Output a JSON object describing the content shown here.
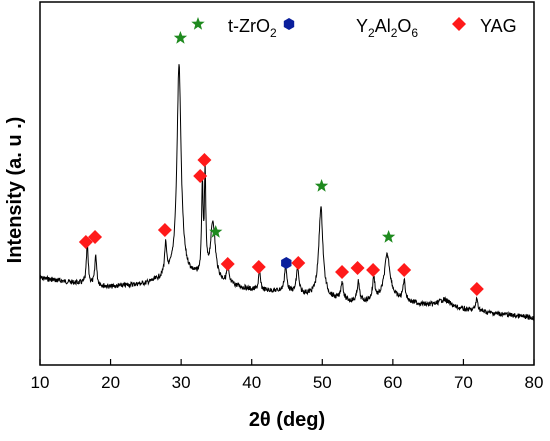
{
  "chart_data": {
    "type": "line",
    "xlabel": "2θ (deg)",
    "ylabel": "Intensity (a. u .)",
    "xlim": [
      10,
      80
    ],
    "xticks": [
      10,
      20,
      30,
      40,
      50,
      60,
      70,
      80
    ],
    "y_ticks_shown": false,
    "grid": false,
    "legend_position": "top",
    "legend": [
      {
        "marker": "star",
        "color": "#1f8a1f",
        "label": "t-ZrO",
        "sub": "2",
        "tail": ""
      },
      {
        "marker": "hexagon",
        "color": "#0a1f9c",
        "label": "Y",
        "sub": "2",
        "mid": "Al",
        "sub2": "2",
        "end": "O",
        "sub3": "6"
      },
      {
        "marker": "diamond",
        "color": "#ff1a1a",
        "label": "YAG"
      }
    ],
    "pattern": {
      "name": "",
      "color": "#000000",
      "baseline": [
        [
          10,
          278
        ],
        [
          14,
          282
        ],
        [
          20,
          287
        ],
        [
          25,
          284
        ],
        [
          30,
          275
        ],
        [
          35,
          282
        ],
        [
          40,
          290
        ],
        [
          45,
          292
        ],
        [
          50,
          298
        ],
        [
          55,
          303
        ],
        [
          60,
          300
        ],
        [
          65,
          306
        ],
        [
          70,
          310
        ],
        [
          75,
          314
        ],
        [
          80,
          318
        ]
      ],
      "peaks": [
        {
          "x": 16.7,
          "h": 40,
          "w": 0.15
        },
        {
          "x": 17.9,
          "h": 30,
          "w": 0.15
        },
        {
          "x": 27.8,
          "h": 30,
          "w": 0.18
        },
        {
          "x": 29.7,
          "h": 210,
          "w": 0.35
        },
        {
          "x": 33.0,
          "h": 90,
          "w": 0.12
        },
        {
          "x": 33.4,
          "h": 100,
          "w": 0.12
        },
        {
          "x": 34.5,
          "h": 58,
          "w": 0.4
        },
        {
          "x": 36.6,
          "h": 20,
          "w": 0.15
        },
        {
          "x": 41.1,
          "h": 20,
          "w": 0.15
        },
        {
          "x": 44.8,
          "h": 25,
          "w": 0.2
        },
        {
          "x": 46.5,
          "h": 25,
          "w": 0.2
        },
        {
          "x": 49.8,
          "h": 90,
          "w": 0.35
        },
        {
          "x": 52.8,
          "h": 18,
          "w": 0.2
        },
        {
          "x": 55.1,
          "h": 20,
          "w": 0.2
        },
        {
          "x": 57.3,
          "h": 22,
          "w": 0.2
        },
        {
          "x": 59.2,
          "h": 45,
          "w": 0.5
        },
        {
          "x": 61.6,
          "h": 20,
          "w": 0.2
        },
        {
          "x": 67.3,
          "h": 8,
          "w": 1.0
        },
        {
          "x": 71.9,
          "h": 12,
          "w": 0.2
        }
      ]
    },
    "markers": [
      {
        "type": "star",
        "x": 29.9,
        "y": 38
      },
      {
        "type": "star",
        "x": 34.9,
        "y": 232
      },
      {
        "type": "star",
        "x": 49.9,
        "y": 186
      },
      {
        "type": "star",
        "x": 59.4,
        "y": 237
      },
      {
        "type": "hexagon",
        "x": 44.9,
        "y": 263
      },
      {
        "type": "diamond",
        "x": 16.5,
        "y": 242
      },
      {
        "type": "diamond",
        "x": 17.8,
        "y": 237
      },
      {
        "type": "diamond",
        "x": 27.7,
        "y": 230
      },
      {
        "type": "diamond",
        "x": 32.7,
        "y": 176
      },
      {
        "type": "diamond",
        "x": 33.3,
        "y": 160
      },
      {
        "type": "diamond",
        "x": 36.6,
        "y": 264
      },
      {
        "type": "diamond",
        "x": 41.0,
        "y": 267
      },
      {
        "type": "diamond",
        "x": 46.6,
        "y": 263
      },
      {
        "type": "diamond",
        "x": 52.8,
        "y": 272
      },
      {
        "type": "diamond",
        "x": 55.0,
        "y": 268
      },
      {
        "type": "diamond",
        "x": 57.2,
        "y": 270
      },
      {
        "type": "diamond",
        "x": 61.6,
        "y": 270
      },
      {
        "type": "diamond",
        "x": 71.9,
        "y": 289
      }
    ]
  }
}
